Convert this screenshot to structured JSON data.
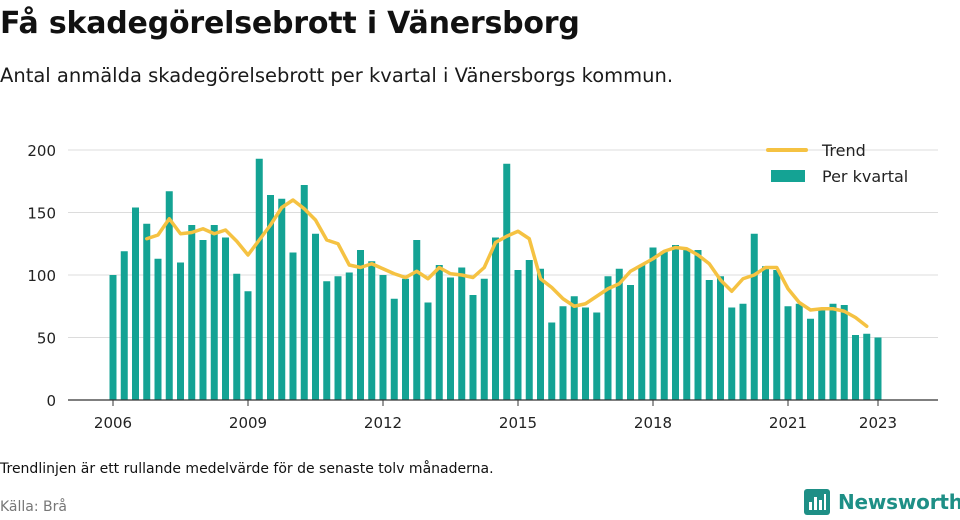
{
  "header": {
    "title": "Få skadegörelsebrott i Vänersborg",
    "subtitle": "Antal anmälda skadegörelsebrott per kvartal i Vänersborgs kommun."
  },
  "footer": {
    "note": "Trendlinjen är ett rullande medelvärde för de senaste tolv månaderna.",
    "source": "Källa: Brå",
    "brand": "Newsworthy",
    "brand_icon": "bar-chart-logo-icon"
  },
  "colors": {
    "bar": "#14a394",
    "trend": "#f5c242",
    "grid": "#dcdcdc",
    "axis": "#333333",
    "brand": "#1e8f86"
  },
  "chart_data": {
    "type": "bar",
    "title": "",
    "xlabel": "",
    "ylabel": "",
    "ylim": [
      0,
      200
    ],
    "yticks": [
      "0",
      "50",
      "100",
      "150",
      "200"
    ],
    "xticks": [
      "2006",
      "2009",
      "2012",
      "2015",
      "2018",
      "2021",
      "2023"
    ],
    "grid": true,
    "legend_position": "top-right",
    "legend": {
      "trend": "Trend",
      "bars": "Per kvartal"
    },
    "x_start": "2006 Q1",
    "categories": [
      "2006 Q1",
      "2006 Q2",
      "2006 Q3",
      "2006 Q4",
      "2007 Q1",
      "2007 Q2",
      "2007 Q3",
      "2007 Q4",
      "2008 Q1",
      "2008 Q2",
      "2008 Q3",
      "2008 Q4",
      "2009 Q1",
      "2009 Q2",
      "2009 Q3",
      "2009 Q4",
      "2010 Q1",
      "2010 Q2",
      "2010 Q3",
      "2010 Q4",
      "2011 Q1",
      "2011 Q2",
      "2011 Q3",
      "2011 Q4",
      "2012 Q1",
      "2012 Q2",
      "2012 Q3",
      "2012 Q4",
      "2013 Q1",
      "2013 Q2",
      "2013 Q3",
      "2013 Q4",
      "2014 Q1",
      "2014 Q2",
      "2014 Q3",
      "2014 Q4",
      "2015 Q1",
      "2015 Q2",
      "2015 Q3",
      "2015 Q4",
      "2016 Q1",
      "2016 Q2",
      "2016 Q3",
      "2016 Q4",
      "2017 Q1",
      "2017 Q2",
      "2017 Q3",
      "2017 Q4",
      "2018 Q1",
      "2018 Q2",
      "2018 Q3",
      "2018 Q4",
      "2019 Q1",
      "2019 Q2",
      "2019 Q3",
      "2019 Q4",
      "2020 Q1",
      "2020 Q2",
      "2020 Q3",
      "2020 Q4",
      "2021 Q1",
      "2021 Q2",
      "2021 Q3",
      "2021 Q4",
      "2022 Q1",
      "2022 Q2",
      "2022 Q3",
      "2022 Q4",
      "2023 Q1"
    ],
    "series": [
      {
        "name": "Per kvartal",
        "values": [
          100,
          119,
          154,
          141,
          113,
          167,
          110,
          140,
          128,
          140,
          130,
          101,
          87,
          193,
          164,
          161,
          118,
          172,
          133,
          95,
          99,
          102,
          120,
          111,
          100,
          81,
          97,
          128,
          78,
          108,
          98,
          106,
          84,
          97,
          130,
          189,
          104,
          112,
          105,
          62,
          75,
          83,
          74,
          70,
          99,
          105,
          92,
          108,
          122,
          119,
          124,
          121,
          120,
          96,
          99,
          74,
          77,
          133,
          107,
          104,
          75,
          77,
          65,
          72,
          77,
          76,
          52,
          53,
          50
        ]
      },
      {
        "name": "Trend",
        "values": [
          null,
          null,
          null,
          129,
          132,
          145,
          133,
          134,
          137,
          133,
          136,
          127,
          116,
          128,
          140,
          154,
          160,
          153,
          144,
          128,
          125,
          108,
          106,
          109,
          105,
          101,
          98,
          103,
          97,
          106,
          101,
          100,
          98,
          106,
          126,
          131,
          135,
          129,
          97,
          90,
          81,
          75,
          77,
          83,
          89,
          93,
          103,
          108,
          113,
          119,
          122,
          121,
          116,
          109,
          96,
          87,
          97,
          100,
          106,
          106,
          89,
          78,
          72,
          73,
          73,
          71,
          66,
          59,
          null
        ]
      }
    ]
  }
}
